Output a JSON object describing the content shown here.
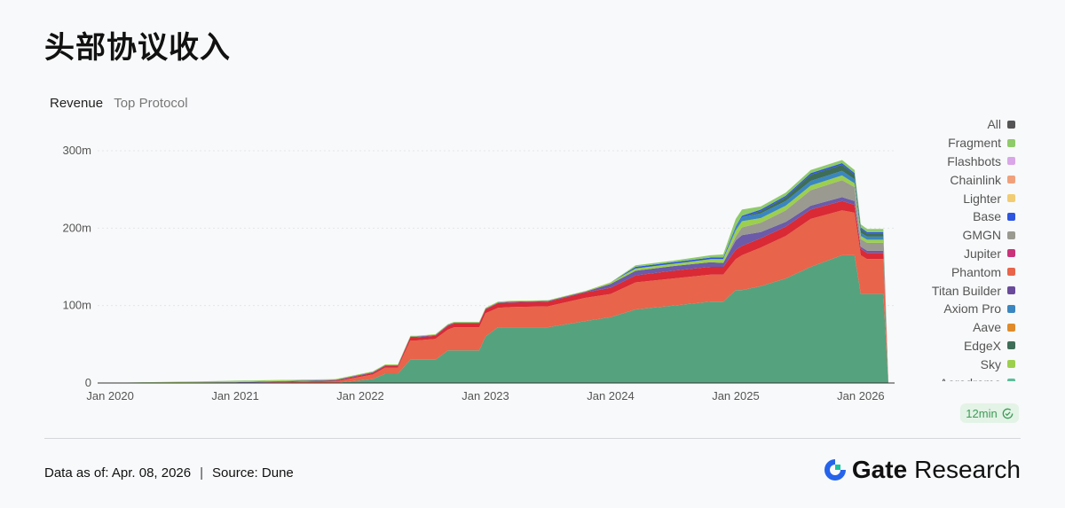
{
  "page": {
    "title": "头部协议收入"
  },
  "tabs": {
    "active": "Revenue",
    "inactive": "Top Protocol"
  },
  "legend": [
    {
      "label": "All",
      "color": "#555555"
    },
    {
      "label": "Fragment",
      "color": "#8fcb6a"
    },
    {
      "label": "Flashbots",
      "color": "#d9a6e8"
    },
    {
      "label": "Chainlink",
      "color": "#f0a07a"
    },
    {
      "label": "Lighter",
      "color": "#f2cc72"
    },
    {
      "label": "Base",
      "color": "#2d55e0"
    },
    {
      "label": "GMGN",
      "color": "#9a9a90"
    },
    {
      "label": "Jupiter",
      "color": "#c9337a"
    },
    {
      "label": "Phantom",
      "color": "#e8644a"
    },
    {
      "label": "Titan Builder",
      "color": "#6a4a9a"
    },
    {
      "label": "Axiom Pro",
      "color": "#3a86c0"
    },
    {
      "label": "Aave",
      "color": "#e08a2a"
    },
    {
      "label": "EdgeX",
      "color": "#3e6e58"
    },
    {
      "label": "Sky",
      "color": "#9ccf4e"
    },
    {
      "label": "Aerodrome",
      "color": "#5bbf9a"
    }
  ],
  "badge": {
    "label": "12min"
  },
  "footer": {
    "date": "Data as of: Apr. 08, 2026",
    "separator": "|",
    "source": "Source:  Dune"
  },
  "brand": {
    "gate": "Gate",
    "research": "Research"
  },
  "chart_data": {
    "type": "area",
    "stacked": true,
    "title": "",
    "xlabel": "",
    "ylabel": "Revenue",
    "ylim": [
      0,
      300
    ],
    "yticks": [
      0,
      100,
      200,
      300
    ],
    "ytick_labels": [
      "0",
      "100m",
      "200m",
      "300m"
    ],
    "xticks": [
      2020.0,
      2021.0,
      2022.0,
      2023.0,
      2024.0,
      2025.0,
      2026.0
    ],
    "xtick_labels": [
      "Jan 2020",
      "Jan 2021",
      "Jan 2022",
      "Jan 2023",
      "Jan 2024",
      "Jan 2025",
      "Jan 2026"
    ],
    "xlim": [
      2019.9,
      2026.27
    ],
    "x": [
      2019.9,
      2021.0,
      2021.8,
      2022.1,
      2022.2,
      2022.3,
      2022.4,
      2022.45,
      2022.6,
      2022.7,
      2022.75,
      2022.95,
      2023.0,
      2023.1,
      2023.2,
      2023.5,
      2023.8,
      2024.0,
      2024.2,
      2024.5,
      2024.8,
      2024.9,
      2025.0,
      2025.05,
      2025.2,
      2025.4,
      2025.6,
      2025.85,
      2025.95,
      2026.0,
      2026.05,
      2026.1,
      2026.18,
      2026.22
    ],
    "series": [
      {
        "name": "Aerodrome",
        "color": "#55a27e",
        "values": [
          0,
          0,
          0,
          5,
          12,
          12,
          30,
          30,
          30,
          42,
          42,
          42,
          60,
          72,
          72,
          72,
          80,
          85,
          95,
          100,
          105,
          105,
          120,
          120,
          125,
          135,
          150,
          165,
          165,
          115,
          115,
          115,
          115,
          0
        ]
      },
      {
        "name": "Phantom",
        "color": "#e8644a",
        "values": [
          0,
          0,
          2,
          6,
          8,
          8,
          25,
          25,
          27,
          27,
          30,
          30,
          30,
          25,
          26,
          27,
          30,
          30,
          35,
          35,
          35,
          35,
          40,
          45,
          50,
          55,
          62,
          58,
          55,
          50,
          45,
          45,
          45,
          0
        ]
      },
      {
        "name": "Jupiter",
        "color": "#d92a35",
        "values": [
          0,
          0,
          1,
          2,
          2,
          2,
          4,
          4,
          4,
          5,
          5,
          5,
          5,
          6,
          6,
          6,
          7,
          8,
          9,
          10,
          10,
          10,
          12,
          12,
          12,
          12,
          12,
          12,
          10,
          8,
          8,
          8,
          8,
          0
        ]
      },
      {
        "name": "Titan Builder",
        "color": "#6b5ba8",
        "values": [
          0,
          1,
          1,
          1,
          1,
          1,
          1,
          1,
          1,
          1,
          1,
          1,
          1,
          1,
          1,
          1,
          1,
          5,
          6,
          6,
          6,
          5,
          12,
          14,
          8,
          6,
          5,
          5,
          5,
          3,
          3,
          3,
          3,
          0
        ]
      },
      {
        "name": "GMGN",
        "color": "#9a9a90",
        "values": [
          0,
          0,
          0,
          0,
          0,
          0,
          0,
          0,
          0,
          0,
          0,
          0,
          0,
          0,
          0,
          0,
          0,
          0,
          0,
          0,
          0,
          0,
          5,
          10,
          12,
          15,
          20,
          22,
          18,
          10,
          10,
          10,
          10,
          0
        ]
      },
      {
        "name": "Sky",
        "color": "#9ccf4e",
        "values": [
          0,
          1,
          1,
          1,
          1,
          1,
          1,
          1,
          1,
          1,
          1,
          1,
          1,
          1,
          1,
          1,
          1,
          2,
          3,
          3,
          4,
          5,
          8,
          8,
          6,
          6,
          6,
          6,
          5,
          4,
          4,
          4,
          4,
          0
        ]
      },
      {
        "name": "Axiom Pro",
        "color": "#3a86c0",
        "values": [
          0,
          0,
          0,
          0,
          0,
          0,
          0,
          0,
          0,
          0,
          0,
          0,
          0,
          0,
          0,
          0,
          0,
          0,
          0,
          0,
          0,
          0,
          3,
          5,
          6,
          6,
          6,
          6,
          5,
          4,
          4,
          4,
          4,
          0
        ]
      },
      {
        "name": "EdgeX",
        "color": "#3e6e58",
        "values": [
          0,
          0,
          0,
          0,
          0,
          0,
          0,
          0,
          0,
          0,
          0,
          0,
          0,
          0,
          0,
          0,
          0,
          0,
          0,
          0,
          0,
          0,
          0,
          0,
          3,
          5,
          8,
          8,
          6,
          5,
          4,
          4,
          4,
          0
        ]
      },
      {
        "name": "Base",
        "color": "#2d55e0",
        "values": [
          0,
          0,
          0,
          0,
          0,
          0,
          0,
          0,
          0,
          0,
          0,
          0,
          0,
          0,
          0,
          0,
          0,
          0,
          2,
          2,
          2,
          2,
          2,
          2,
          2,
          2,
          2,
          2,
          2,
          2,
          2,
          2,
          2,
          0
        ]
      },
      {
        "name": "Fragment",
        "color": "#8fcb6a",
        "values": [
          0,
          1,
          0,
          0,
          0,
          0,
          0,
          0,
          0,
          0,
          0,
          0,
          0,
          0,
          0,
          0,
          0,
          0,
          2,
          2,
          3,
          4,
          10,
          8,
          4,
          4,
          4,
          4,
          4,
          4,
          4,
          4,
          4,
          0
        ]
      }
    ]
  }
}
